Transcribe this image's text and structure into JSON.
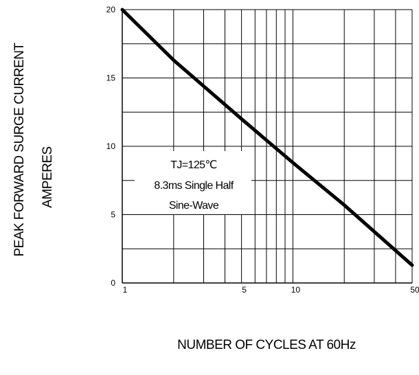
{
  "chart_data": {
    "type": "line",
    "xlabel": "NUMBER OF CYCLES AT 60Hz",
    "ylabel_lines": [
      "PEAK FORWARD SURGE CURRENT",
      "AMPERES"
    ],
    "x_scale": "log",
    "xlim": [
      1,
      50
    ],
    "ylim": [
      0,
      20
    ],
    "x_ticks": [
      1,
      5,
      10,
      50
    ],
    "x_tick_labels": [
      "1",
      "5",
      "10",
      "50"
    ],
    "y_ticks": [
      0,
      5,
      10,
      15,
      20
    ],
    "y_tick_labels": [
      "0",
      "5",
      "10",
      "15",
      "20"
    ],
    "x_gridlines": [
      1,
      2,
      3,
      4,
      5,
      6,
      7,
      8,
      9,
      10,
      20,
      30,
      40,
      50
    ],
    "y_gridlines": [
      0,
      2.5,
      5,
      7.5,
      10,
      12.5,
      15,
      17.5,
      20
    ],
    "grid": true,
    "annotation_lines": [
      "TJ=125℃",
      "8.3ms Single Half",
      "Sine-Wave"
    ],
    "series": [
      {
        "x": [
          1,
          2,
          5,
          10,
          20,
          50
        ],
        "y": [
          20,
          16.3,
          12,
          8.8,
          5.7,
          1.3
        ]
      }
    ]
  }
}
